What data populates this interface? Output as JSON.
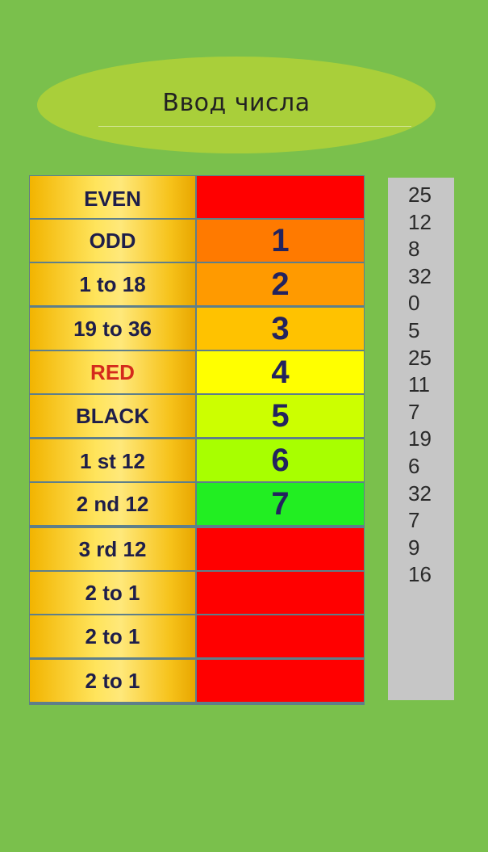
{
  "input_button": {
    "label": "Ввод числа"
  },
  "table": {
    "rows": [
      {
        "label": "EVEN",
        "label_color": "#1e1e4a",
        "value": "",
        "value_color": "#ff0000"
      },
      {
        "label": "ODD",
        "label_color": "#1e1e4a",
        "value": "1",
        "value_color": "#ff7a00"
      },
      {
        "label": "1 to 18",
        "label_color": "#1e1e4a",
        "value": "2",
        "value_color": "#ff9a00"
      },
      {
        "label": "19 to 36",
        "label_color": "#1e1e4a",
        "value": "3",
        "value_color": "#ffc200"
      },
      {
        "label": "RED",
        "label_color": "#d42a1c",
        "value": "4",
        "value_color": "#ffff00"
      },
      {
        "label": "BLACK",
        "label_color": "#1e1e4a",
        "value": "5",
        "value_color": "#ccff00"
      },
      {
        "label": "1 st 12",
        "label_color": "#1e1e4a",
        "value": "6",
        "value_color": "#a8ff00"
      },
      {
        "label": "2 nd 12",
        "label_color": "#1e1e4a",
        "value": "7",
        "value_color": "#22ee22"
      },
      {
        "label": "3 rd 12",
        "label_color": "#1e1e4a",
        "value": "",
        "value_color": "#ff0000"
      },
      {
        "label": "2 to 1",
        "label_color": "#1e1e4a",
        "value": "",
        "value_color": "#ff0000"
      },
      {
        "label": "2 to 1",
        "label_color": "#1e1e4a",
        "value": "",
        "value_color": "#ff0000"
      },
      {
        "label": "2 to 1",
        "label_color": "#1e1e4a",
        "value": "",
        "value_color": "#ff0000"
      }
    ]
  },
  "history": [
    "25",
    "12",
    "8",
    "32",
    "0",
    "5",
    "25",
    "11",
    "7",
    "19",
    "6",
    "32",
    "7",
    "9",
    "16"
  ]
}
